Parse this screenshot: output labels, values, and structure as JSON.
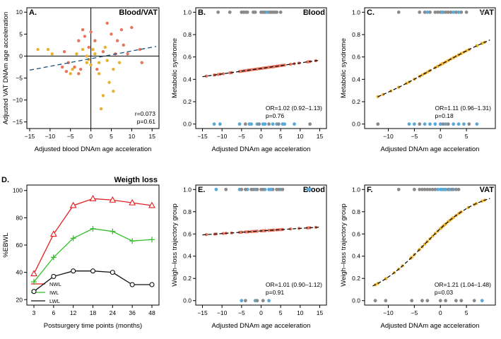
{
  "chart_data": [
    {
      "id": "A",
      "type": "scatter",
      "letter": "A.",
      "title": "Blood/VAT",
      "xlabel": "Adjusted blood DNAm age acceleration",
      "ylabel": "Adjusted VAT DNAm age acceleration",
      "xlim": [
        -15,
        16
      ],
      "ylim": [
        -16.5,
        11
      ],
      "xticks": [
        -15,
        -10,
        -5,
        0,
        5,
        10,
        15
      ],
      "yticks": [
        -15,
        -10,
        -5,
        0,
        5,
        10
      ],
      "annotations": [
        "r=0.073",
        "p=0.61"
      ],
      "fit": {
        "x": [
          -15,
          16
        ],
        "y": [
          -3.2,
          2.2
        ]
      },
      "hline": 0,
      "vline": 0,
      "points": [
        {
          "x": -13,
          "y": 1.5,
          "g": "orange"
        },
        {
          "x": -10.5,
          "y": 1.5,
          "g": "orange"
        },
        {
          "x": -9.5,
          "y": 0.5,
          "g": "orange"
        },
        {
          "x": -6.5,
          "y": 1.0,
          "g": "salmon"
        },
        {
          "x": -6,
          "y": -3.5,
          "g": "salmon"
        },
        {
          "x": -5.5,
          "y": -1.5,
          "g": "salmon"
        },
        {
          "x": -5,
          "y": -4,
          "g": "orange"
        },
        {
          "x": -4.5,
          "y": -3,
          "g": "orange"
        },
        {
          "x": -4,
          "y": -2.5,
          "g": "salmon"
        },
        {
          "x": -3.5,
          "y": 0.5,
          "g": "orange"
        },
        {
          "x": -3,
          "y": 3.5,
          "g": "salmon"
        },
        {
          "x": -2.5,
          "y": -3,
          "g": "salmon"
        },
        {
          "x": -2,
          "y": 6,
          "g": "salmon"
        },
        {
          "x": -2,
          "y": 1.5,
          "g": "orange"
        },
        {
          "x": -1.5,
          "y": 4.5,
          "g": "salmon"
        },
        {
          "x": -1,
          "y": 0,
          "g": "orange"
        },
        {
          "x": -1,
          "y": -1.5,
          "g": "orange"
        },
        {
          "x": -0.5,
          "y": 2,
          "g": "salmon"
        },
        {
          "x": -0.5,
          "y": -0.8,
          "g": "orange"
        },
        {
          "x": 0,
          "y": -2,
          "g": "orange"
        },
        {
          "x": 0,
          "y": 5.5,
          "g": "salmon"
        },
        {
          "x": 1,
          "y": 0.5,
          "g": "orange"
        },
        {
          "x": 1,
          "y": 3.5,
          "g": "salmon"
        },
        {
          "x": 1.5,
          "y": -3,
          "g": "salmon"
        },
        {
          "x": 2,
          "y": -1.5,
          "g": "orange"
        },
        {
          "x": 2,
          "y": -4,
          "g": "orange"
        },
        {
          "x": 2.5,
          "y": -12,
          "g": "orange"
        },
        {
          "x": 3,
          "y": -9,
          "g": "orange"
        },
        {
          "x": 3,
          "y": 1,
          "g": "salmon"
        },
        {
          "x": 3.5,
          "y": 2,
          "g": "orange"
        },
        {
          "x": 4,
          "y": 7.5,
          "g": "salmon"
        },
        {
          "x": 4,
          "y": -1,
          "g": "orange"
        },
        {
          "x": 4.5,
          "y": -6,
          "g": "orange"
        },
        {
          "x": 5,
          "y": 5,
          "g": "salmon"
        },
        {
          "x": 5.5,
          "y": -8,
          "g": "orange"
        },
        {
          "x": 5.5,
          "y": -3,
          "g": "orange"
        },
        {
          "x": 6,
          "y": 0.5,
          "g": "salmon"
        },
        {
          "x": 6.5,
          "y": 3.5,
          "g": "salmon"
        },
        {
          "x": 7,
          "y": -1.5,
          "g": "orange"
        },
        {
          "x": 7.5,
          "y": 6,
          "g": "salmon"
        },
        {
          "x": 8,
          "y": 2.5,
          "g": "salmon"
        },
        {
          "x": 9,
          "y": 0.5,
          "g": "salmon"
        },
        {
          "x": 10,
          "y": 6.5,
          "g": "salmon"
        },
        {
          "x": 12,
          "y": 1.5,
          "g": "salmon"
        },
        {
          "x": 12.5,
          "y": -1.5,
          "g": "salmon"
        },
        {
          "x": -7,
          "y": -2.5,
          "g": "salmon"
        },
        {
          "x": -3,
          "y": -4,
          "g": "salmon"
        },
        {
          "x": 0.5,
          "y": 1.5,
          "g": "orange"
        }
      ]
    },
    {
      "id": "B",
      "type": "scatter",
      "letter": "B.",
      "title": "Blood",
      "xlabel": "Adjusted DNAm age acceleration",
      "ylabel": "Metabolic syndrome",
      "xlim": [
        -16,
        16
      ],
      "ylim": [
        -0.04,
        1.04
      ],
      "xticks": [
        -15,
        -10,
        -5,
        0,
        5,
        10,
        15
      ],
      "yticks": [
        0.0,
        0.2,
        0.4,
        0.6,
        0.8,
        1.0
      ],
      "yticklabels": [
        "0.0",
        "0.2",
        "0.4",
        "0.6",
        "0.8",
        "1.0"
      ],
      "annotations": [
        "OR=1.02 (0.92–1.13)",
        "p=0.76"
      ],
      "curve": {
        "type": "logistic",
        "b0": -0.01,
        "b1": 0.0198,
        "from": -15,
        "to": 15
      },
      "fitted_color": "salmon",
      "top_points": [
        -11,
        -8,
        -5,
        -4.5,
        -3.5,
        -2,
        -1.5,
        0,
        0.5,
        1,
        2,
        3,
        4,
        5,
        12,
        -4,
        1.5,
        2.5,
        3.5
      ],
      "top_groups": [
        "gray",
        "gray",
        "gray",
        "gray",
        "gray",
        "gray",
        "gray",
        "gray",
        "gray",
        "gray",
        "gray",
        "gray",
        "gray",
        "gray",
        "gray",
        "gray",
        "blue",
        "gray",
        "gray"
      ],
      "bottom_points": [
        -12,
        -10.5,
        -5.5,
        -3,
        -2.5,
        -1,
        0.5,
        1,
        3,
        4,
        5.5,
        6,
        8.5,
        12.5,
        -4,
        -0.5,
        2,
        4.5
      ],
      "bottom_groups": [
        "blue",
        "blue",
        "blue",
        "blue",
        "blue",
        "blue",
        "blue",
        "blue",
        "blue",
        "blue",
        "blue",
        "blue",
        "blue",
        "gray",
        "gray",
        "gray",
        "gray",
        "gray"
      ]
    },
    {
      "id": "C",
      "type": "scatter",
      "letter": "C.",
      "title": "VAT",
      "xlabel": "Adjusted DNAm age acceleration",
      "ylabel": "Metabolic syndrome",
      "xlim": [
        -14,
        10
      ],
      "ylim": [
        -0.04,
        1.04
      ],
      "xticks": [
        -10,
        -5,
        0,
        5
      ],
      "yticks": [
        0.0,
        0.2,
        0.4,
        0.6,
        0.8,
        1.0
      ],
      "yticklabels": [
        "0.0",
        "0.2",
        "0.4",
        "0.6",
        "0.8",
        "1.0"
      ],
      "annotations": [
        "OR=1.11 (0.96–1.31)",
        "p=0.18"
      ],
      "curve": {
        "type": "logistic",
        "b0": 0.12,
        "b1": 0.104,
        "from": -12,
        "to": 9.5
      },
      "fitted_color": "orange",
      "top_points": [
        -8,
        -4,
        -3,
        -2,
        -1,
        -0.5,
        0,
        0.5,
        1,
        1.5,
        2,
        3,
        4,
        5,
        8,
        -2.5,
        0.3,
        2.5,
        3.5
      ],
      "top_groups": [
        "gray",
        "gray",
        "gray",
        "gray",
        "gray",
        "gray",
        "gray",
        "gray",
        "gray",
        "gray",
        "gray",
        "gray",
        "gray",
        "gray",
        "gray",
        "blue",
        "blue",
        "blue",
        "blue"
      ],
      "bottom_points": [
        -12,
        -6,
        -5,
        -4,
        -2,
        -1,
        0,
        1,
        1.5,
        2.5,
        4.5,
        5.5,
        7,
        -3,
        0.5,
        3.5
      ],
      "bottom_groups": [
        "gray",
        "blue",
        "blue",
        "gray",
        "blue",
        "blue",
        "blue",
        "blue",
        "gray",
        "blue",
        "blue",
        "gray",
        "blue",
        "blue",
        "gray",
        "blue"
      ]
    },
    {
      "id": "D",
      "type": "line",
      "letter": "D.",
      "title": "Weigth loss",
      "xlabel": "Postsurgery time points (months)",
      "ylabel": "%EBWL",
      "categories": [
        "3",
        "6",
        "12",
        "18",
        "24",
        "36",
        "48"
      ],
      "ylim": [
        16,
        104
      ],
      "yticks": [
        20,
        40,
        60,
        80,
        100
      ],
      "series": [
        {
          "name": "NWL",
          "color": "red",
          "marker": "triangle",
          "values": [
            39,
            68,
            89,
            94,
            93,
            91,
            89
          ]
        },
        {
          "name": "IWL",
          "color": "green",
          "marker": "plus",
          "values": [
            33,
            51,
            65,
            72,
            70,
            63,
            64
          ]
        },
        {
          "name": "LWL",
          "color": "black",
          "marker": "circle",
          "values": [
            26,
            37,
            41,
            41,
            40,
            31,
            31
          ]
        }
      ]
    },
    {
      "id": "E",
      "type": "scatter",
      "letter": "E.",
      "title": "Blood",
      "xlabel": "Adjusted DNAm age acceleration",
      "ylabel": "Weigh–loss trajectory group",
      "xlim": [
        -16,
        16
      ],
      "ylim": [
        -0.04,
        1.04
      ],
      "xticks": [
        -15,
        -10,
        -5,
        0,
        5,
        10,
        15
      ],
      "yticks": [
        0.0,
        0.2,
        0.4,
        0.6,
        0.8,
        1.0
      ],
      "yticklabels": [
        "0.0",
        "0.2",
        "0.4",
        "0.6",
        "0.8",
        "1.0"
      ],
      "annotations": [
        "OR=1.01 (0.90–1.12)",
        "p=0.91"
      ],
      "curve": {
        "type": "logistic",
        "b0": 0.52,
        "b1": 0.01,
        "from": -15,
        "to": 15
      },
      "fitted_color": "salmon",
      "top_points": [
        -11.5,
        -9,
        -5.5,
        -5,
        -3.5,
        -2.5,
        -1.5,
        -1,
        0,
        1,
        2,
        3,
        4,
        5,
        12,
        -4,
        -2,
        0.5,
        2.5,
        4.5,
        5.5,
        12.5
      ],
      "top_groups": [
        "blue",
        "gray",
        "blue",
        "gray",
        "blue",
        "gray",
        "blue",
        "gray",
        "gray",
        "blue",
        "blue",
        "gray",
        "gray",
        "blue",
        "blue",
        "gray",
        "gray",
        "gray",
        "blue",
        "gray",
        "gray",
        "blue"
      ],
      "bottom_points": [
        -5,
        -4,
        -1.5,
        -1,
        0.5,
        2
      ],
      "bottom_groups": [
        "blue",
        "gray",
        "blue",
        "gray",
        "gray",
        "blue"
      ]
    },
    {
      "id": "F",
      "type": "scatter",
      "letter": "F.",
      "title": "VAT",
      "xlabel": "Adjusted DNAm age acceleration",
      "ylabel": "Weigh–loss trajectory group",
      "xlim": [
        -14,
        10
      ],
      "ylim": [
        -0.04,
        1.04
      ],
      "xticks": [
        -10,
        -5,
        0,
        5
      ],
      "yticks": [
        0.0,
        0.2,
        0.4,
        0.6,
        0.8,
        1.0
      ],
      "yticklabels": [
        "0.0",
        "0.2",
        "0.4",
        "0.6",
        "0.8",
        "1.0"
      ],
      "annotations": [
        "OR=1.21 (1.04–1.48)",
        "p=0.03"
      ],
      "curve": {
        "type": "logistic",
        "b0": 0.61,
        "b1": 0.192,
        "from": -13,
        "to": 9.5
      },
      "fitted_color": "orange",
      "top_points": [
        -8,
        -5,
        -4,
        -3.5,
        -3,
        -2.5,
        -2,
        -1.5,
        -1,
        0,
        0.5,
        1,
        1.5,
        2.5,
        3,
        3.5,
        -0.5,
        0.2,
        0.8,
        1.8,
        2.2
      ],
      "top_groups": [
        "gray",
        "gray",
        "gray",
        "gray",
        "gray",
        "gray",
        "gray",
        "gray",
        "gray",
        "blue",
        "blue",
        "blue",
        "gray",
        "blue",
        "gray",
        "gray",
        "blue",
        "blue",
        "blue",
        "blue",
        "gray"
      ],
      "bottom_points": [
        -12.5,
        -10.5,
        -5.5,
        -3.5,
        -2.5,
        0,
        1,
        3,
        4,
        6.5,
        8
      ],
      "bottom_groups": [
        "gray",
        "gray",
        "gray",
        "gray",
        "gray",
        "gray",
        "gray",
        "gray",
        "gray",
        "gray",
        "blue"
      ]
    }
  ],
  "colors": {
    "salmon": "#e8765e",
    "orange": "#e9b12e",
    "gray": "#8a8a8a",
    "blue": "#5aa9d6",
    "red": "#e02020",
    "green": "#33c02a",
    "black": "#111111"
  }
}
